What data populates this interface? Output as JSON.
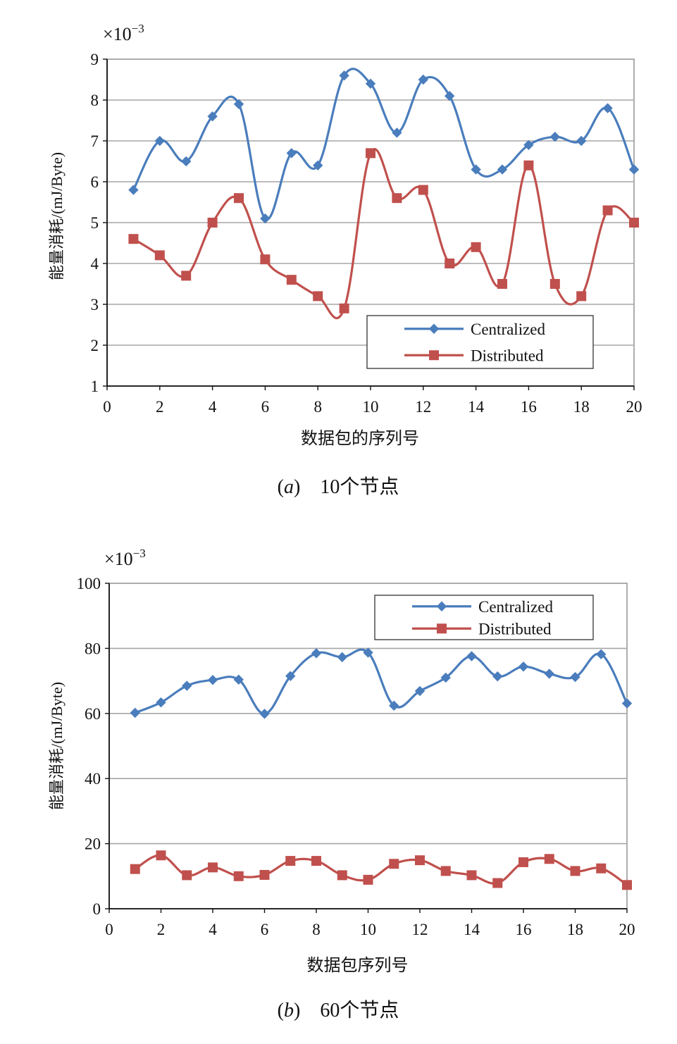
{
  "chart_data": [
    {
      "type": "line",
      "title": "",
      "exponent_label": "×10",
      "exponent_power": "−3",
      "ylabel": "能量消耗/(mJ/Byte)",
      "xlabel": "数据包的序列号",
      "caption_letter": "a",
      "caption_text": "10个节点",
      "xlim": [
        0,
        20
      ],
      "ylim": [
        1,
        9
      ],
      "xticks": [
        "0",
        "2",
        "4",
        "6",
        "8",
        "10",
        "12",
        "14",
        "16",
        "18",
        "20"
      ],
      "yticks": [
        "1",
        "2",
        "3",
        "4",
        "5",
        "6",
        "7",
        "8",
        "9"
      ],
      "grid": true,
      "legend_position": "bottom-right",
      "x": [
        1,
        2,
        3,
        4,
        5,
        6,
        7,
        8,
        9,
        10,
        11,
        12,
        13,
        14,
        15,
        16,
        17,
        18,
        19,
        20
      ],
      "series": [
        {
          "name": "Centralized",
          "color": "#4a7dbc",
          "marker": "diamond",
          "values": [
            5.8,
            7.0,
            6.5,
            7.6,
            7.9,
            5.1,
            6.7,
            6.4,
            8.6,
            8.4,
            7.2,
            8.5,
            8.1,
            6.3,
            6.3,
            6.9,
            7.1,
            7.0,
            7.8,
            6.3
          ]
        },
        {
          "name": "Distributed",
          "color": "#c0504d",
          "marker": "square",
          "values": [
            4.6,
            4.2,
            3.7,
            5.0,
            5.6,
            4.1,
            3.6,
            3.2,
            2.9,
            6.7,
            5.6,
            5.8,
            4.0,
            4.4,
            3.5,
            6.4,
            3.5,
            3.2,
            5.3,
            5.0
          ]
        }
      ]
    },
    {
      "type": "line",
      "title": "",
      "exponent_label": "×10",
      "exponent_power": "−3",
      "ylabel": "能量消耗/(mJ/Byte)",
      "xlabel": "数据包序列号",
      "caption_letter": "b",
      "caption_text": "60个节点",
      "xlim": [
        0,
        20
      ],
      "ylim": [
        0,
        100
      ],
      "xticks": [
        "0",
        "2",
        "4",
        "6",
        "8",
        "10",
        "12",
        "14",
        "16",
        "18",
        "20"
      ],
      "yticks": [
        "0",
        "20",
        "40",
        "60",
        "80",
        "100"
      ],
      "grid": true,
      "legend_position": "top-right",
      "x": [
        1,
        2,
        3,
        4,
        5,
        6,
        7,
        8,
        9,
        10,
        11,
        12,
        13,
        14,
        15,
        16,
        17,
        18,
        19,
        20
      ],
      "series": [
        {
          "name": "Centralized",
          "color": "#4a7dbc",
          "marker": "diamond",
          "values": [
            60.2,
            63.4,
            68.5,
            70.3,
            70.4,
            59.9,
            71.5,
            78.5,
            77.3,
            78.7,
            62.4,
            66.9,
            71.0,
            77.6,
            71.4,
            74.4,
            72.2,
            71.2,
            78.2,
            63.1
          ]
        },
        {
          "name": "Distributed",
          "color": "#c0504d",
          "marker": "square",
          "values": [
            12.2,
            16.4,
            10.3,
            12.7,
            10.0,
            10.4,
            14.7,
            14.7,
            10.3,
            8.9,
            13.8,
            14.9,
            11.6,
            10.3,
            7.9,
            14.3,
            15.3,
            11.6,
            12.4,
            7.3
          ]
        }
      ]
    }
  ]
}
